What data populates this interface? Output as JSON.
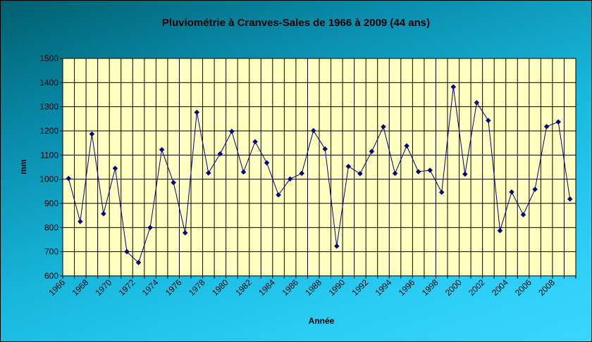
{
  "chart_data": {
    "type": "line",
    "title": "Pluviométrie à Cranves-Sales de 1966 à 2009 (44 ans)",
    "xlabel": "Année",
    "ylabel": "mm",
    "ylim": [
      600,
      1500
    ],
    "yticks": [
      600,
      700,
      800,
      900,
      1000,
      1100,
      1200,
      1300,
      1400,
      1500
    ],
    "x_tick_labels": [
      "1966",
      "1968",
      "1970",
      "1972",
      "1974",
      "1976",
      "1978",
      "1980",
      "1982",
      "1984",
      "1986",
      "1988",
      "1990",
      "1992",
      "1994",
      "1996",
      "1998",
      "2000",
      "2002",
      "2004",
      "2006",
      "2008"
    ],
    "grid": true,
    "legend": "none",
    "plot_background": "#ffffc0",
    "series_color": "#00007f",
    "x": [
      1966,
      1967,
      1968,
      1969,
      1970,
      1971,
      1972,
      1973,
      1974,
      1975,
      1976,
      1977,
      1978,
      1979,
      1980,
      1981,
      1982,
      1983,
      1984,
      1985,
      1986,
      1987,
      1988,
      1989,
      1990,
      1991,
      1992,
      1993,
      1994,
      1995,
      1996,
      1997,
      1998,
      1999,
      2000,
      2001,
      2002,
      2003,
      2004,
      2005,
      2006,
      2007,
      2008,
      2009
    ],
    "series": [
      {
        "values": [
          1003,
          825,
          1187,
          857,
          1045,
          700,
          655,
          800,
          1122,
          986,
          778,
          1277,
          1026,
          1105,
          1198,
          1030,
          1155,
          1068,
          935,
          1001,
          1024,
          1201,
          1125,
          723,
          1053,
          1023,
          1115,
          1217,
          1024,
          1138,
          1031,
          1037,
          946,
          1382,
          1021,
          1317,
          1243,
          787,
          947,
          853,
          958,
          1218,
          1237,
          918
        ]
      }
    ]
  }
}
